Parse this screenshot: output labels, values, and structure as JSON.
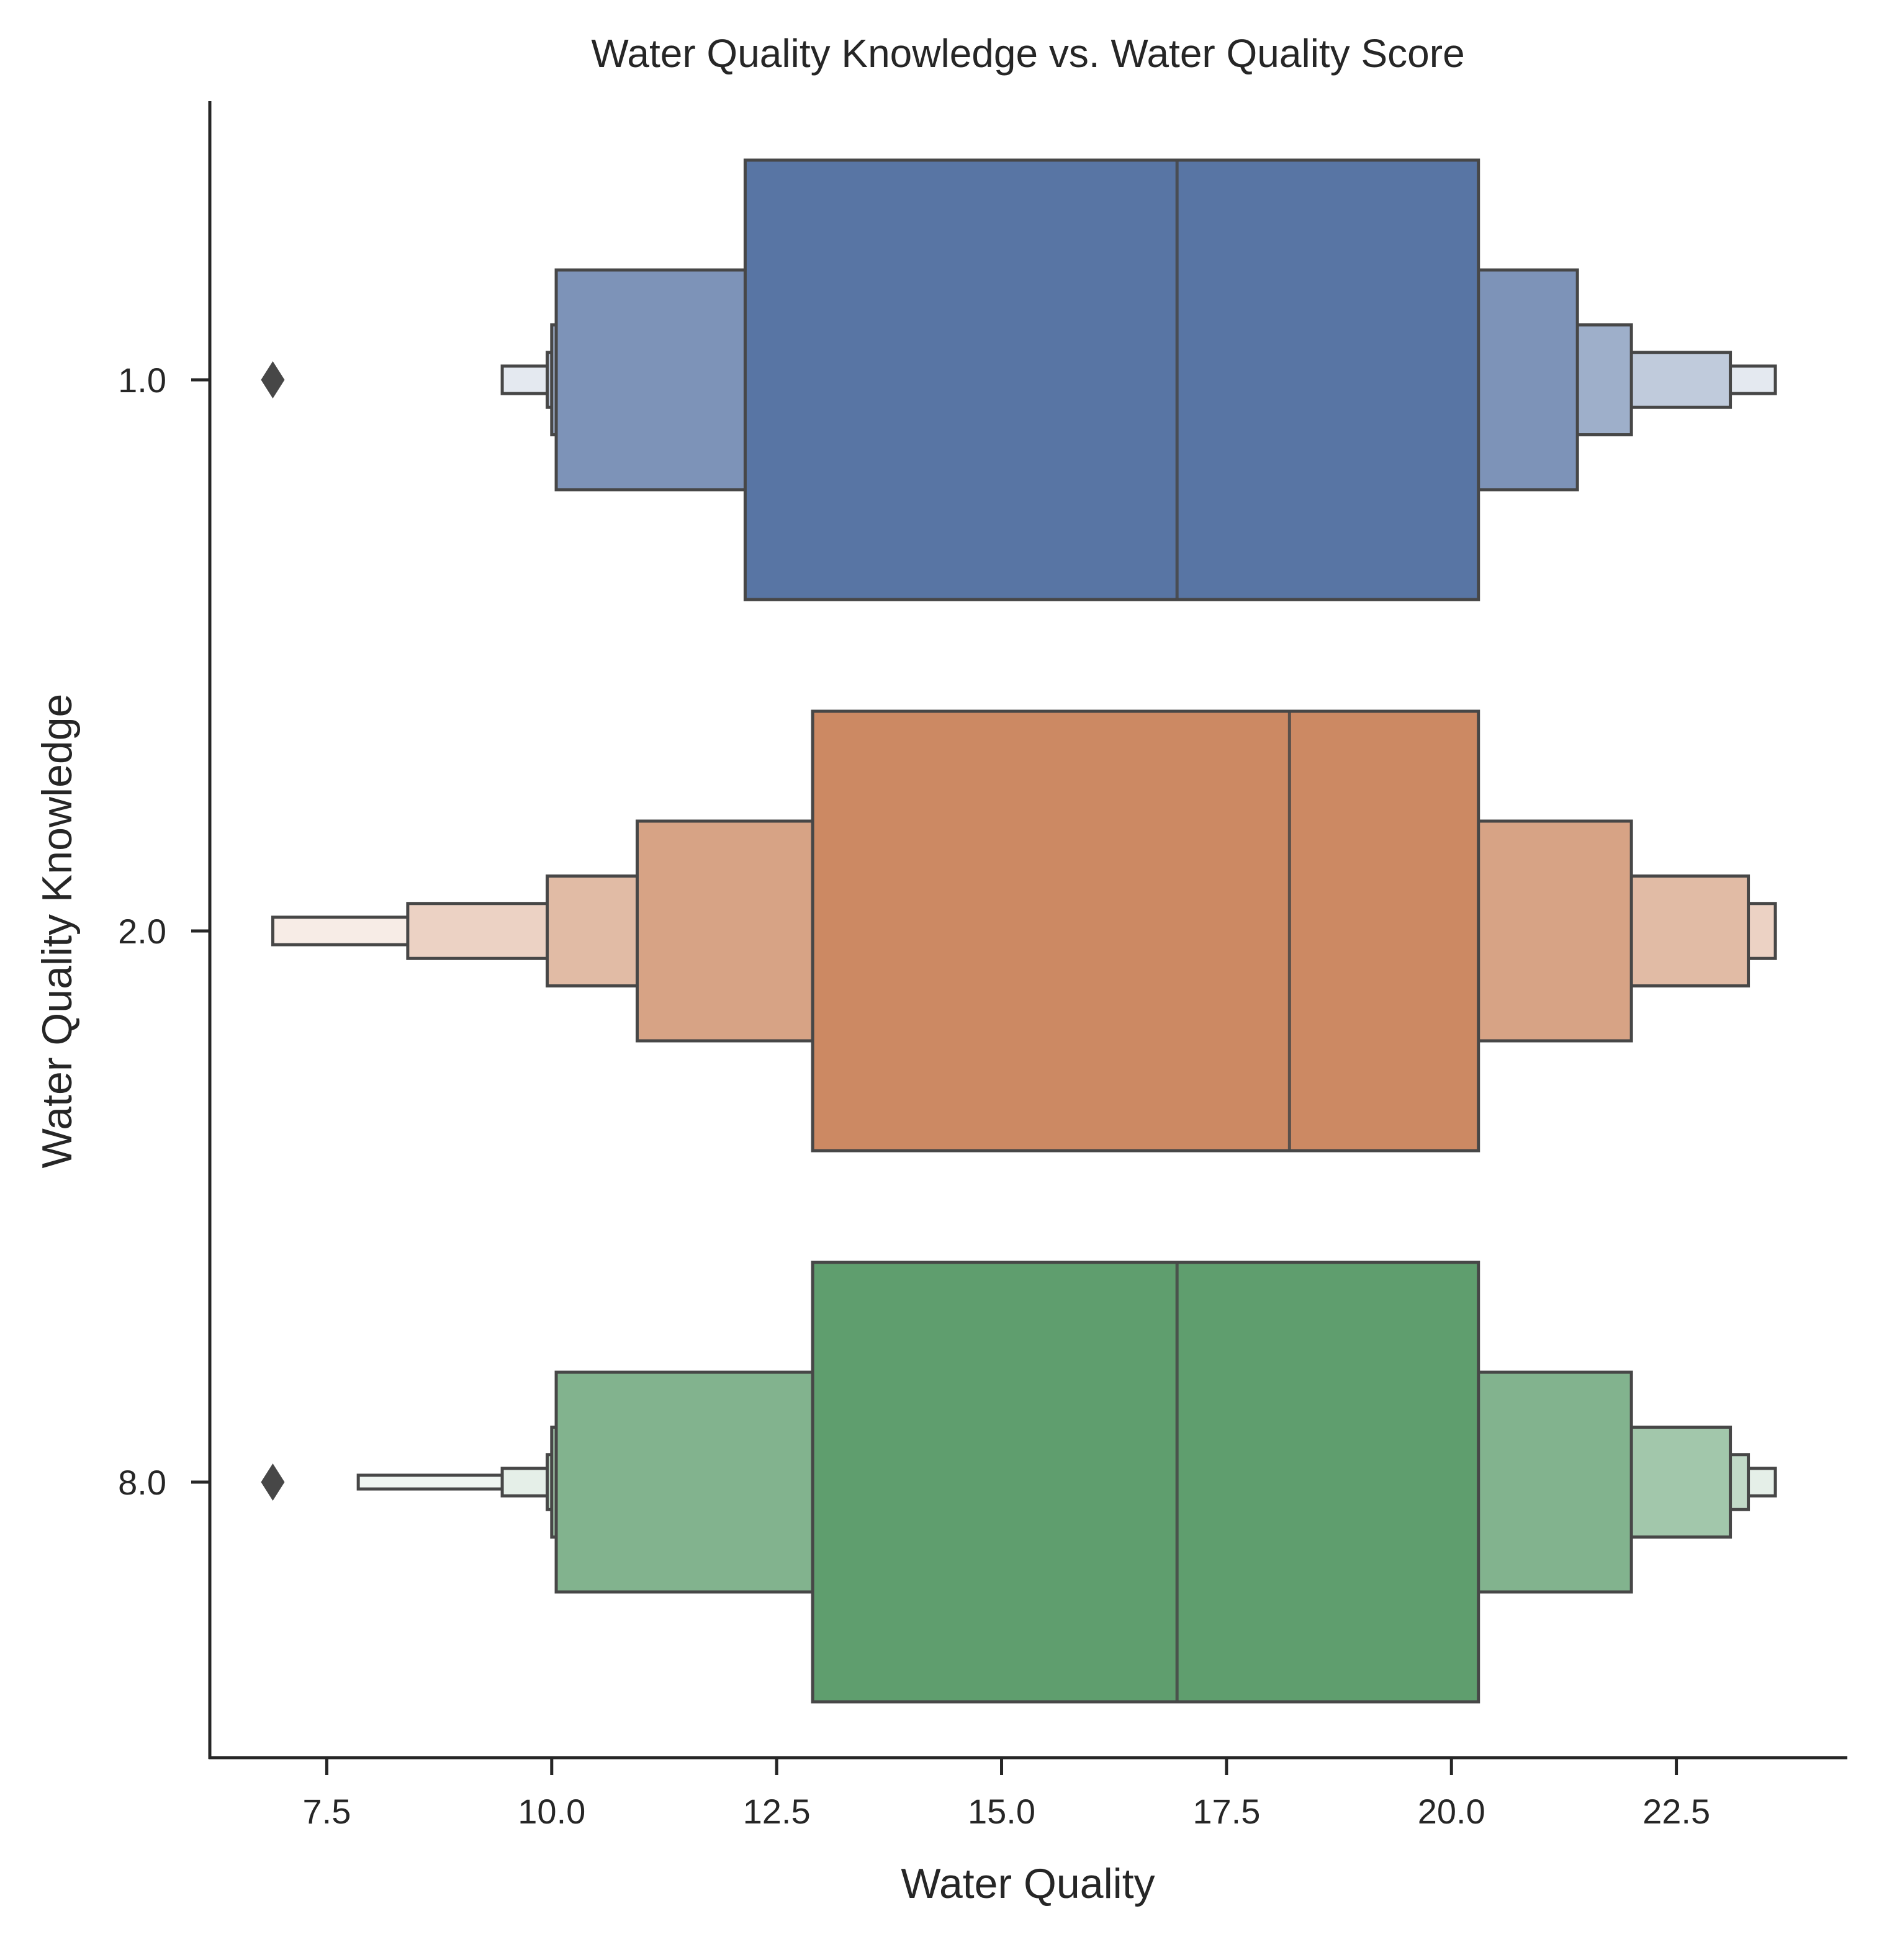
{
  "chart_data": {
    "type": "boxenplot",
    "title": "Water Quality Knowledge vs. Water Quality Score",
    "xlabel": "Water Quality",
    "ylabel": "Water Quality Knowledge",
    "orientation": "horizontal",
    "xlim": [
      6.2,
      24.4
    ],
    "xticks": [
      "7.5",
      "10.0",
      "12.5",
      "15.0",
      "17.5",
      "20.0",
      "22.5"
    ],
    "xtick_values": [
      7.5,
      10.0,
      12.5,
      15.0,
      17.5,
      20.0,
      22.5
    ],
    "categories": [
      "1.0",
      "2.0",
      "8.0"
    ],
    "grid": false,
    "legend": "none",
    "series": [
      {
        "category": "1.0",
        "color": "#5875a4",
        "median": 16.95,
        "boxes": [
          {
            "low": 12.15,
            "high": 20.3
          },
          {
            "low": 10.05,
            "high": 21.4
          },
          {
            "low": 10.0,
            "high": 22.0
          },
          {
            "low": 9.95,
            "high": 23.1
          },
          {
            "low": 9.45,
            "high": 23.6
          }
        ],
        "outliers": [
          6.9
        ]
      },
      {
        "category": "2.0",
        "color": "#cc8963",
        "median": 18.2,
        "boxes": [
          {
            "low": 12.9,
            "high": 20.3
          },
          {
            "low": 10.95,
            "high": 22.0
          },
          {
            "low": 9.95,
            "high": 23.3
          },
          {
            "low": 8.4,
            "high": 23.6
          },
          {
            "low": 6.9,
            "high": 23.6
          }
        ],
        "outliers": []
      },
      {
        "category": "8.0",
        "color": "#5f9e6e",
        "median": 16.95,
        "boxes": [
          {
            "low": 12.9,
            "high": 20.3
          },
          {
            "low": 10.05,
            "high": 22.0
          },
          {
            "low": 10.0,
            "high": 23.1
          },
          {
            "low": 9.95,
            "high": 23.3
          },
          {
            "low": 9.45,
            "high": 23.6
          },
          {
            "low": 7.85,
            "high": 23.6
          }
        ],
        "outliers": [
          6.9
        ]
      }
    ]
  }
}
